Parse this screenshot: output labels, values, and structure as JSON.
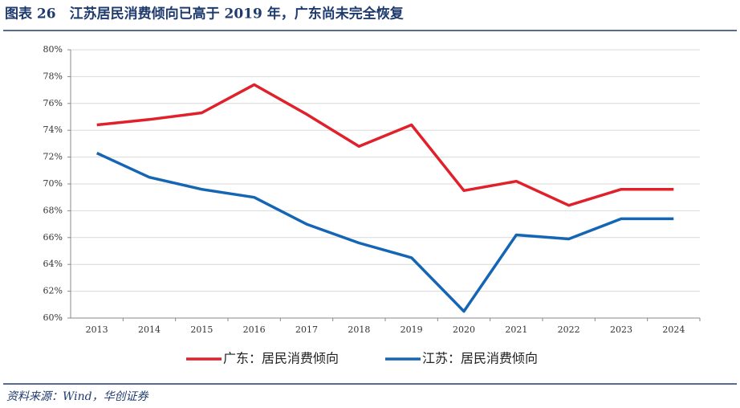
{
  "title": "图表 26　江苏居民消费倾向已高于 2019 年，广东尚未完全恢复",
  "source": "资料来源：Wind，华创证券",
  "chart_data": {
    "type": "line",
    "categories": [
      "2013",
      "2014",
      "2015",
      "2016",
      "2017",
      "2018",
      "2019",
      "2020",
      "2021",
      "2022",
      "2023",
      "2024"
    ],
    "series": [
      {
        "name": "广东：居民消费倾向",
        "color": "#e0202a",
        "values": [
          74.4,
          74.8,
          75.3,
          77.4,
          75.2,
          72.8,
          74.4,
          69.5,
          70.2,
          68.4,
          69.6,
          69.6
        ]
      },
      {
        "name": "江苏：居民消费倾向",
        "color": "#1565b5",
        "values": [
          72.3,
          70.5,
          69.6,
          69.0,
          67.0,
          65.6,
          64.5,
          60.5,
          66.2,
          65.9,
          67.4,
          67.4
        ]
      }
    ],
    "ylim": [
      60,
      80
    ],
    "yticks": [
      {
        "value": 60,
        "label": "60%"
      },
      {
        "value": 62,
        "label": "62%"
      },
      {
        "value": 64,
        "label": "64%"
      },
      {
        "value": 66,
        "label": "66%"
      },
      {
        "value": 68,
        "label": "68%"
      },
      {
        "value": 70,
        "label": "70%"
      },
      {
        "value": 72,
        "label": "72%"
      },
      {
        "value": 74,
        "label": "74%"
      },
      {
        "value": 76,
        "label": "76%"
      },
      {
        "value": 78,
        "label": "78%"
      },
      {
        "value": 80,
        "label": "80%"
      }
    ],
    "grid": true
  }
}
